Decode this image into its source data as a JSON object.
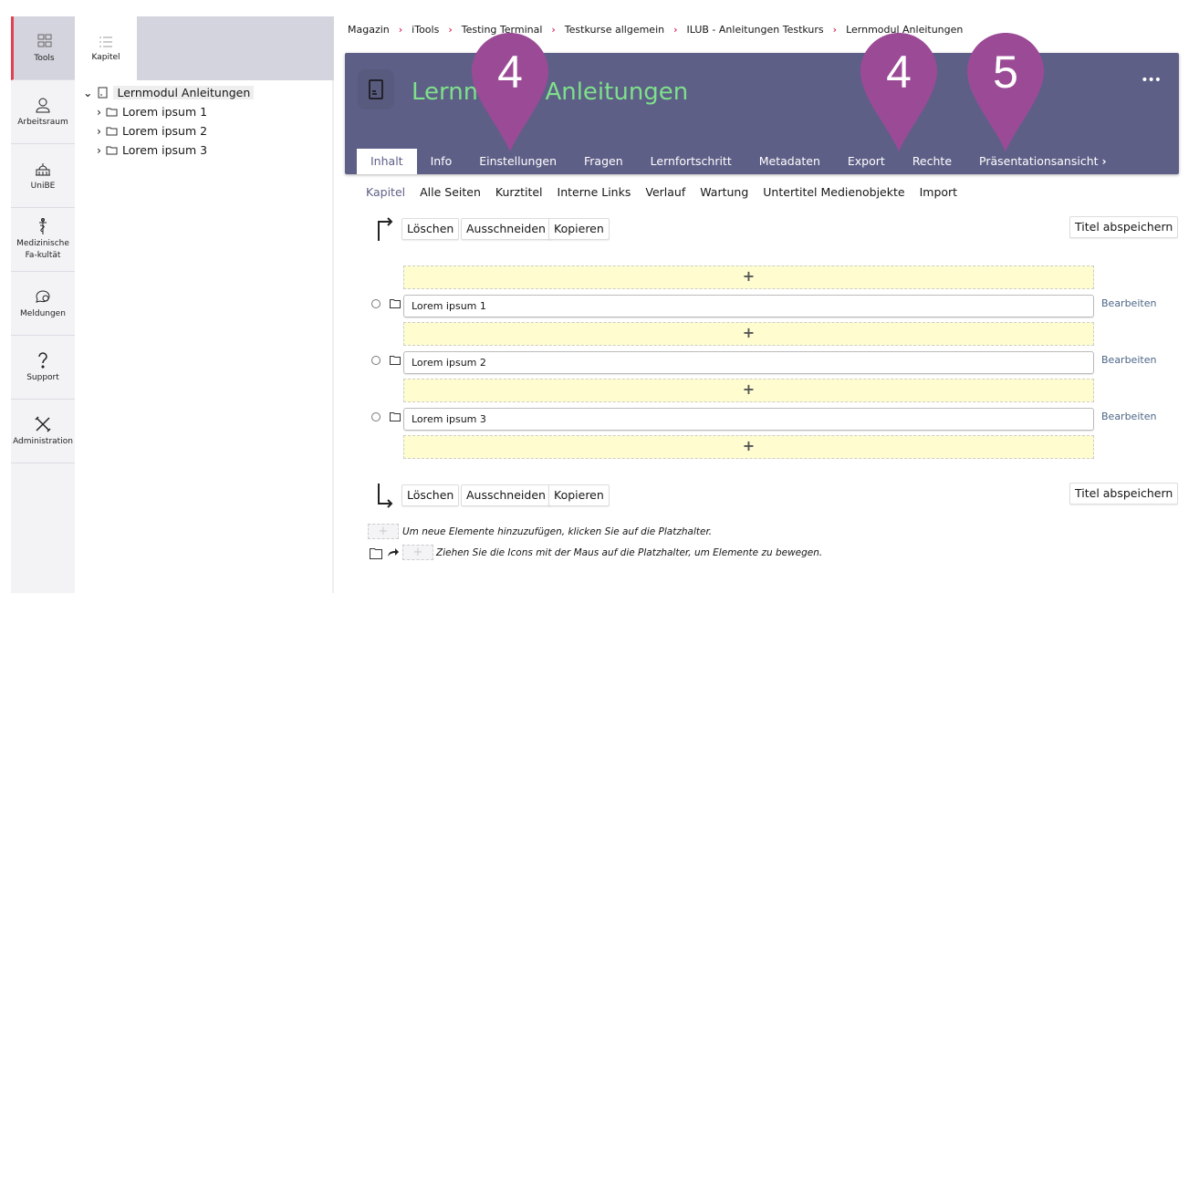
{
  "mainbar": {
    "items": [
      {
        "label": "Tools",
        "icon": "grid-icon",
        "active": true
      },
      {
        "label": "Arbeitsraum",
        "icon": "user-icon"
      },
      {
        "label": "UniBE",
        "icon": "building-icon"
      },
      {
        "label": "Medizinische Fa-kultät",
        "icon": "caduceus-icon"
      },
      {
        "label": "Meldungen",
        "icon": "chat-icon"
      },
      {
        "label": "Support",
        "icon": "question-icon"
      },
      {
        "label": "Administration",
        "icon": "tools-icon"
      }
    ]
  },
  "slate": {
    "tab": "Kapitel",
    "tree": {
      "root": "Lernmodul Anleitungen",
      "children": [
        "Lorem ipsum 1",
        "Lorem ipsum 2",
        "Lorem ipsum 3"
      ]
    }
  },
  "breadcrumb": [
    "Magazin",
    "iTools",
    "Testing Terminal",
    "Testkurse allgemein",
    "ILUB - Anleitungen Testkurs",
    "Lernmodul Anleitungen"
  ],
  "header": {
    "title": "Lernmodul Anleitungen",
    "title_color": "#7ee08a",
    "bg_color": "#5e5f87",
    "more": "•••",
    "tabs": [
      "Inhalt",
      "Info",
      "Einstellungen",
      "Fragen",
      "Lernfortschritt",
      "Metadaten",
      "Export",
      "Rechte",
      "Präsentationsansicht"
    ],
    "active_tab": "Inhalt"
  },
  "subtabs": [
    "Kapitel",
    "Alle Seiten",
    "Kurztitel",
    "Interne Links",
    "Verlauf",
    "Wartung",
    "Untertitel Medienobjekte",
    "Import"
  ],
  "actions": {
    "delete": "Löschen",
    "cut": "Ausschneiden",
    "copy": "Kopieren",
    "save_titles": "Titel abspeichern"
  },
  "chapters": [
    {
      "title": "Lorem ipsum 1",
      "edit": "Bearbeiten"
    },
    {
      "title": "Lorem ipsum 2",
      "edit": "Bearbeiten"
    },
    {
      "title": "Lorem ipsum 3",
      "edit": "Bearbeiten"
    }
  ],
  "placeholder_symbol": "+",
  "hints": [
    "Um neue Elemente hinzuzufügen, klicken Sie auf die Platzhalter.",
    "Ziehen Sie die Icons mit der Maus auf die Platzhalter, um Elemente zu bewegen."
  ],
  "markers": [
    "4",
    "4",
    "5"
  ],
  "marker_color": "#9b4a96"
}
